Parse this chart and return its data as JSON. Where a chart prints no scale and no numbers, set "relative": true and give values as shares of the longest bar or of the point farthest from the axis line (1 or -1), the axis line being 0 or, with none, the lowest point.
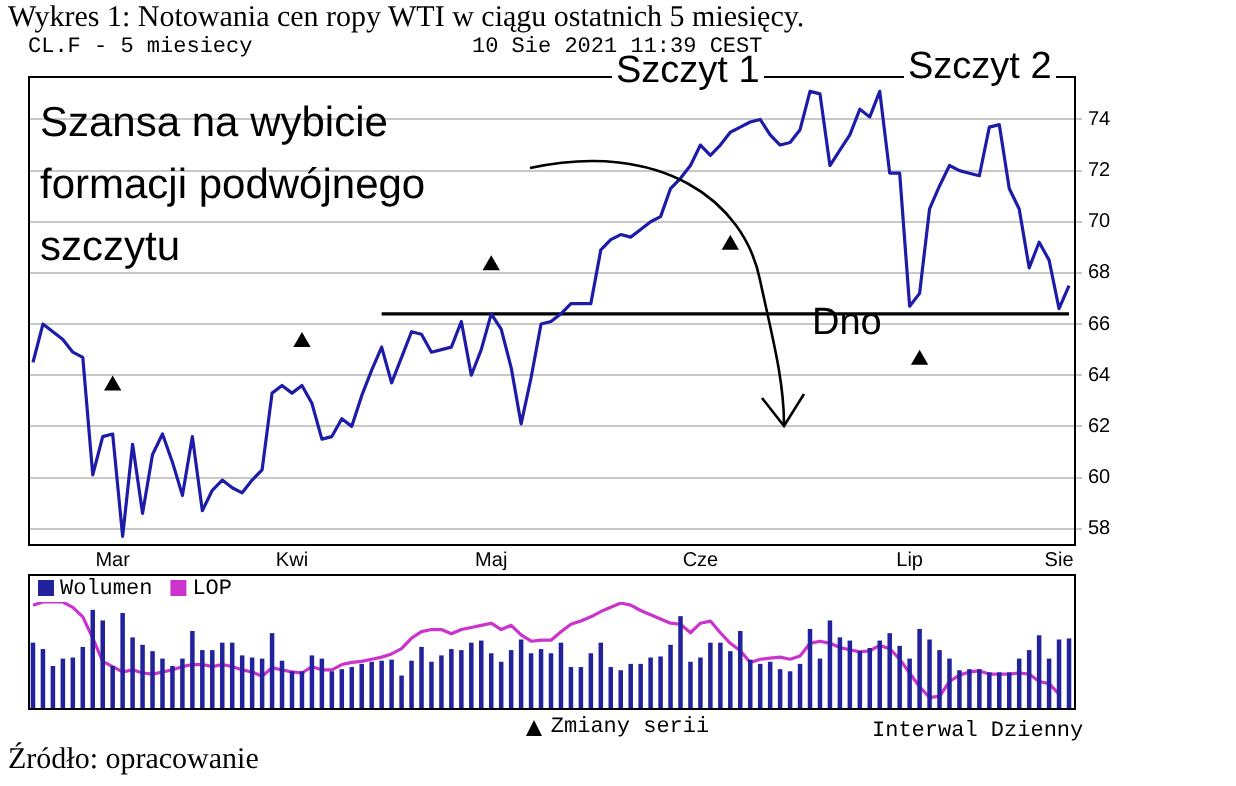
{
  "chart_data": [
    {
      "type": "line",
      "title": "Wykres 1: Notowania cen ropy WTI w ciągu ostatnich 5 miesięcy.",
      "subtitle": "CL.F - 5 miesiecy",
      "annotations": [
        "Szansa na wybicie formacji podwójnego szczytu",
        "Szczyt 1",
        "Szczyt 2",
        "Dno",
        "10 Sie 2021 11:39 CEST",
        "Interwal Dzienny",
        "Źródło: opracowanie"
      ],
      "categories": [
        null,
        null,
        null,
        null,
        null,
        null,
        null,
        null,
        "Mar",
        null,
        null,
        null,
        null,
        null,
        null,
        null,
        null,
        null,
        null,
        null,
        null,
        null,
        null,
        null,
        null,
        null,
        "Kwi",
        null,
        null,
        null,
        null,
        null,
        null,
        null,
        null,
        null,
        null,
        null,
        null,
        null,
        null,
        null,
        null,
        null,
        null,
        null,
        "Maj",
        null,
        null,
        null,
        null,
        null,
        null,
        null,
        null,
        null,
        null,
        null,
        null,
        null,
        null,
        null,
        null,
        null,
        null,
        null,
        null,
        "Cze",
        null,
        null,
        null,
        null,
        null,
        null,
        null,
        null,
        null,
        null,
        null,
        null,
        null,
        null,
        null,
        null,
        null,
        null,
        null,
        null,
        "Lip",
        null,
        null,
        null,
        null,
        null,
        null,
        null,
        null,
        null,
        null,
        null,
        null,
        null,
        null,
        "Sie",
        null
      ],
      "series": [
        {
          "type": "line",
          "color": "#1c1ca8",
          "values": [
            64.5,
            66.0,
            65.7,
            65.4,
            64.9,
            64.7,
            60.1,
            61.6,
            61.7,
            57.7,
            61.3,
            58.6,
            60.9,
            61.7,
            60.6,
            59.3,
            61.6,
            58.7,
            59.5,
            59.9,
            59.6,
            59.4,
            59.9,
            60.3,
            63.3,
            63.6,
            63.3,
            63.6,
            62.9,
            61.5,
            61.6,
            62.3,
            62.0,
            63.2,
            64.2,
            65.1,
            63.7,
            64.7,
            65.7,
            65.6,
            64.9,
            65.0,
            65.1,
            66.1,
            64.0,
            65.0,
            66.4,
            65.8,
            64.3,
            62.1,
            63.9,
            66.0,
            66.1,
            66.4,
            66.8,
            66.8,
            66.8,
            68.9,
            69.3,
            69.5,
            69.4,
            69.7,
            70.0,
            70.2,
            71.3,
            71.7,
            72.2,
            73.0,
            72.6,
            73.0,
            73.5,
            73.7,
            73.9,
            74.0,
            73.4,
            73.0,
            73.1,
            73.6,
            75.1,
            75.0,
            72.2,
            72.8,
            73.4,
            74.4,
            74.1,
            75.1,
            71.9,
            71.9,
            66.7,
            67.2,
            70.5,
            71.4,
            72.2,
            72.0,
            71.9,
            71.8,
            73.7,
            73.8,
            71.3,
            70.5,
            68.2,
            69.2,
            68.5,
            66.6,
            67.5
          ]
        },
        {
          "type": "line",
          "color": "#000000",
          "values": [
            null,
            null,
            null,
            null,
            null,
            null,
            null,
            null,
            null,
            null,
            null,
            null,
            null,
            null,
            null,
            null,
            null,
            null,
            null,
            null,
            null,
            null,
            null,
            null,
            null,
            null,
            null,
            null,
            null,
            null,
            null,
            null,
            null,
            null,
            null,
            66.4,
            66.4,
            66.4,
            66.4,
            66.4,
            66.4,
            66.4,
            66.4,
            66.4,
            66.4,
            66.4,
            66.4,
            66.4,
            66.4,
            66.4,
            66.4,
            66.4,
            66.4,
            66.4,
            66.4,
            66.4,
            66.4,
            66.4,
            66.4,
            66.4,
            66.4,
            66.4,
            66.4,
            66.4,
            66.4,
            66.4,
            66.4,
            66.4,
            66.4,
            66.4,
            66.4,
            66.4,
            66.4,
            66.4,
            66.4,
            66.4,
            66.4,
            66.4,
            66.4,
            66.4,
            66.4,
            66.4,
            66.4,
            66.4,
            66.4,
            66.4,
            66.4,
            66.4,
            66.4,
            66.4,
            66.4,
            66.4,
            66.4,
            66.4,
            66.4,
            66.4,
            66.4,
            66.4,
            66.4,
            66.4,
            66.4,
            66.4,
            66.4,
            66.4,
            66.4
          ]
        },
        {
          "type": "scatter",
          "name": "Zmiany serii",
          "color": "#000000",
          "marker": "triangle",
          "values": [
            null,
            null,
            null,
            null,
            null,
            null,
            null,
            null,
            63.6,
            null,
            null,
            null,
            null,
            null,
            null,
            null,
            null,
            null,
            null,
            null,
            null,
            null,
            null,
            null,
            null,
            null,
            null,
            65.3,
            null,
            null,
            null,
            null,
            null,
            null,
            null,
            null,
            null,
            null,
            null,
            null,
            null,
            null,
            null,
            null,
            null,
            null,
            68.3,
            null,
            null,
            null,
            null,
            null,
            null,
            null,
            null,
            null,
            null,
            null,
            null,
            null,
            null,
            null,
            null,
            null,
            null,
            null,
            null,
            null,
            null,
            null,
            69.1,
            null,
            null,
            null,
            null,
            null,
            null,
            null,
            null,
            null,
            null,
            null,
            null,
            null,
            null,
            null,
            null,
            null,
            null,
            64.6,
            null,
            null,
            null,
            null,
            null,
            null,
            null,
            null,
            null,
            null,
            null,
            null,
            null,
            null,
            null
          ]
        }
      ],
      "ylim": [
        57.4,
        75.7
      ],
      "yticks": [
        58,
        60,
        62,
        64,
        66,
        68,
        70,
        72,
        74
      ],
      "grid": "y",
      "legend": "bottom"
    },
    {
      "type": "bar",
      "relative": true,
      "categories": [
        null,
        null,
        null,
        null,
        null,
        null,
        null,
        null,
        null,
        null,
        null,
        null,
        null,
        null,
        null,
        null,
        null,
        null,
        null,
        null,
        null,
        null,
        null,
        null,
        null,
        null,
        null,
        null,
        null,
        null,
        null,
        null,
        null,
        null,
        null,
        null,
        null,
        null,
        null,
        null,
        null,
        null,
        null,
        null,
        null,
        null,
        null,
        null,
        null,
        null,
        null,
        null,
        null,
        null,
        null,
        null,
        null,
        null,
        null,
        null,
        null,
        null,
        null,
        null,
        null,
        null,
        null,
        null,
        null,
        null,
        null,
        null,
        null,
        null,
        null,
        null,
        null,
        null,
        null,
        null,
        null,
        null,
        null,
        null,
        null,
        null,
        null,
        null,
        null,
        null,
        null,
        null,
        null,
        null,
        null,
        null,
        null,
        null,
        null,
        null,
        null,
        null,
        null,
        null,
        null
      ],
      "series": [
        {
          "name": "Wolumen",
          "type": "bar",
          "color": "#22229c",
          "values": [
            0.61,
            0.55,
            0.39,
            0.46,
            0.47,
            0.57,
            0.92,
            0.82,
            0.39,
            0.89,
            0.66,
            0.59,
            0.53,
            0.46,
            0.39,
            0.46,
            0.72,
            0.54,
            0.54,
            0.61,
            0.61,
            0.49,
            0.47,
            0.46,
            0.7,
            0.44,
            0.34,
            0.34,
            0.49,
            0.46,
            0.34,
            0.36,
            0.38,
            0.41,
            0.43,
            0.44,
            0.45,
            0.3,
            0.44,
            0.57,
            0.43,
            0.49,
            0.55,
            0.54,
            0.61,
            0.63,
            0.51,
            0.43,
            0.54,
            0.64,
            0.51,
            0.55,
            0.51,
            0.61,
            0.38,
            0.38,
            0.51,
            0.61,
            0.38,
            0.35,
            0.41,
            0.41,
            0.47,
            0.48,
            0.59,
            0.86,
            0.43,
            0.47,
            0.61,
            0.61,
            0.53,
            0.72,
            0.45,
            0.41,
            0.43,
            0.36,
            0.34,
            0.41,
            0.74,
            0.46,
            0.82,
            0.66,
            0.63,
            0.53,
            0.56,
            0.63,
            0.7,
            0.58,
            0.46,
            0.74,
            0.64,
            0.54,
            0.46,
            0.35,
            0.36,
            0.36,
            0.33,
            0.33,
            0.33,
            0.46,
            0.54,
            0.68,
            0.46,
            0.64,
            0.65
          ]
        },
        {
          "name": "LOP",
          "type": "line",
          "color": "#cc33cc",
          "values": [
            0.97,
            1,
            1,
            1,
            0.95,
            0.86,
            0.66,
            0.44,
            0.39,
            0.34,
            0.36,
            0.33,
            0.32,
            0.34,
            0.36,
            0.39,
            0.41,
            0.41,
            0.39,
            0.41,
            0.39,
            0.36,
            0.34,
            0.3,
            0.38,
            0.36,
            0.34,
            0.33,
            0.39,
            0.36,
            0.36,
            0.41,
            0.43,
            0.44,
            0.46,
            0.48,
            0.51,
            0.56,
            0.66,
            0.72,
            0.74,
            0.74,
            0.7,
            0.74,
            0.76,
            0.78,
            0.8,
            0.74,
            0.78,
            0.69,
            0.63,
            0.64,
            0.64,
            0.72,
            0.79,
            0.82,
            0.86,
            0.91,
            0.95,
            0.99,
            0.97,
            0.92,
            0.88,
            0.84,
            0.8,
            0.79,
            0.71,
            0.8,
            0.82,
            0.71,
            0.61,
            0.54,
            0.43,
            0.46,
            0.47,
            0.48,
            0.46,
            0.49,
            0.61,
            0.63,
            0.61,
            0.57,
            0.55,
            0.53,
            0.54,
            0.59,
            0.56,
            0.46,
            0.33,
            0.2,
            0.1,
            0.11,
            0.25,
            0.31,
            0.34,
            0.35,
            0.32,
            0.32,
            0.32,
            0.33,
            0.32,
            0.25,
            0.23,
            0.13,
            null
          ]
        }
      ],
      "legend": "top left"
    }
  ]
}
